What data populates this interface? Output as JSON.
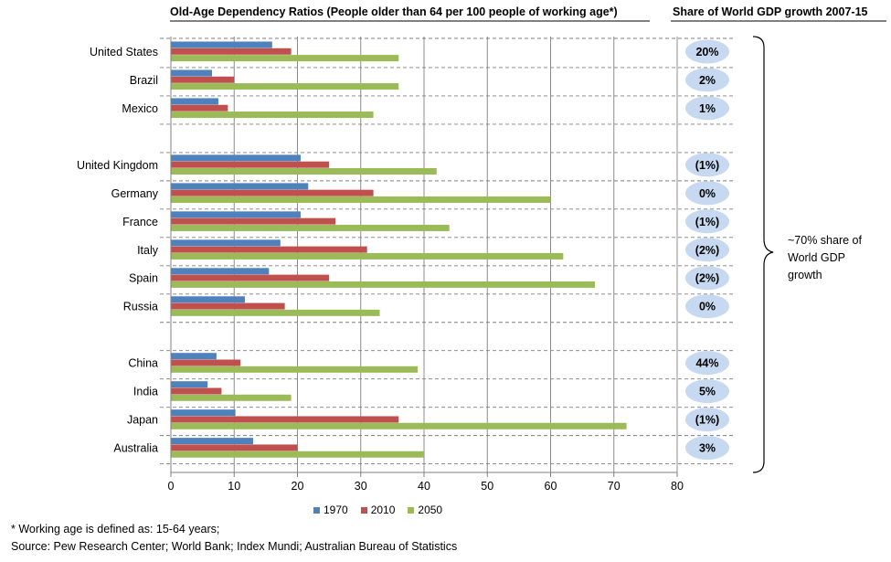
{
  "chart_data": {
    "type": "bar",
    "orientation": "horizontal",
    "title": "Old-Age Dependency Ratios (People older than 64 per 100 people of working age*)",
    "side_title": "Share of World GDP growth 2007-15",
    "groups": [
      {
        "countries": [
          "United States",
          "Brazil",
          "Mexico"
        ]
      },
      {
        "countries": [
          "United Kingdom",
          "Germany",
          "France",
          "Italy",
          "Spain",
          "Russia"
        ]
      },
      {
        "countries": [
          "China",
          "India",
          "Japan",
          "Australia"
        ]
      }
    ],
    "categories": [
      "United States",
      "Brazil",
      "Mexico",
      "United Kingdom",
      "Germany",
      "France",
      "Italy",
      "Spain",
      "Russia",
      "China",
      "India",
      "Japan",
      "Australia"
    ],
    "series": [
      {
        "name": "1970",
        "color": "#4f81bd",
        "values": [
          16,
          6.5,
          7.5,
          20.5,
          21.7,
          20.5,
          17.3,
          15.5,
          11.7,
          7.2,
          5.8,
          10.2,
          13
        ]
      },
      {
        "name": "2010",
        "color": "#c0504d",
        "values": [
          19,
          10,
          9,
          25,
          32,
          26,
          31,
          25,
          18,
          11,
          8,
          36,
          20
        ]
      },
      {
        "name": "2050",
        "color": "#9bbb59",
        "values": [
          36,
          36,
          32,
          42,
          60,
          44,
          62,
          67,
          33,
          39,
          19,
          72,
          40
        ]
      }
    ],
    "gdp_share": [
      "20%",
      "2%",
      "1%",
      "(1%)",
      "0%",
      "(1%)",
      "(2%)",
      "(2%)",
      "0%",
      "44%",
      "5%",
      "(1%)",
      "3%"
    ],
    "xlim": [
      0,
      80
    ],
    "xticks": [
      0,
      10,
      20,
      30,
      40,
      50,
      60,
      70,
      80
    ],
    "grid": true,
    "legend_position": "bottom",
    "colors": {
      "bubble": "#c6d9f1",
      "grid": "#7f7f7f",
      "divider": "#7f7f7f"
    }
  },
  "brace_note": "~70% share of World GDP growth",
  "footnotes": [
    "* Working age is defined as: 15-64 years;",
    "Source: Pew Research Center; World Bank; Index Mundi; Australian Bureau of Statistics"
  ]
}
